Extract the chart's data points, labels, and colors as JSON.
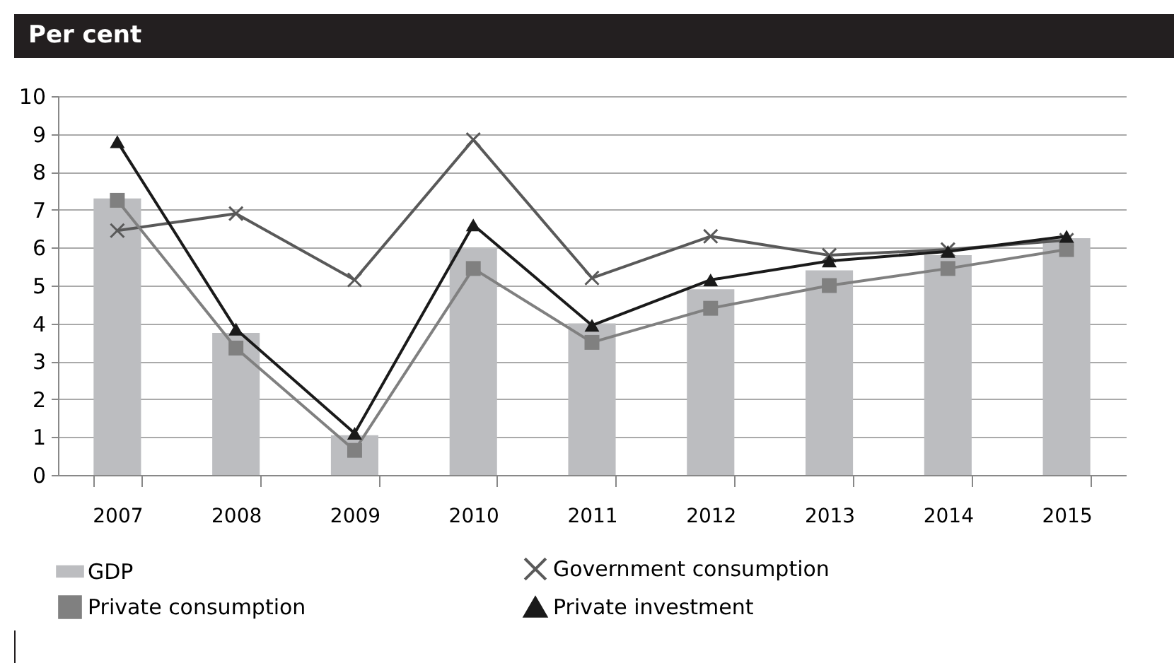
{
  "chart_data": {
    "type": "bar",
    "title": "Per cent",
    "categories": [
      "2007",
      "2008",
      "2009",
      "2010",
      "2011",
      "2012",
      "2013",
      "2014",
      "2015"
    ],
    "series": [
      {
        "name": "GDP",
        "type": "bar",
        "color": "#bcbdc0",
        "values": [
          7.3,
          3.75,
          1.05,
          6.0,
          4.0,
          4.9,
          5.4,
          5.8,
          6.25
        ]
      },
      {
        "name": "Government consumption",
        "type": "line",
        "color": "#595959",
        "marker": "cross",
        "values": [
          6.45,
          6.9,
          5.15,
          8.85,
          5.2,
          6.3,
          5.8,
          5.95,
          6.2
        ]
      },
      {
        "name": "Private consumption",
        "type": "line",
        "color": "#808080",
        "marker": "square",
        "values": [
          7.25,
          3.35,
          0.65,
          5.45,
          3.5,
          4.4,
          5.0,
          5.45,
          5.95
        ]
      },
      {
        "name": "Private investment",
        "type": "line",
        "color": "#1a1a1a",
        "marker": "triangle",
        "values": [
          8.8,
          3.85,
          1.1,
          6.6,
          3.95,
          5.15,
          5.65,
          5.9,
          6.3
        ]
      }
    ],
    "ylim": [
      0,
      10
    ],
    "yticks": [
      0,
      1,
      2,
      3,
      4,
      5,
      6,
      7,
      8,
      9,
      10
    ],
    "grid": "y",
    "legend": "bottom"
  }
}
